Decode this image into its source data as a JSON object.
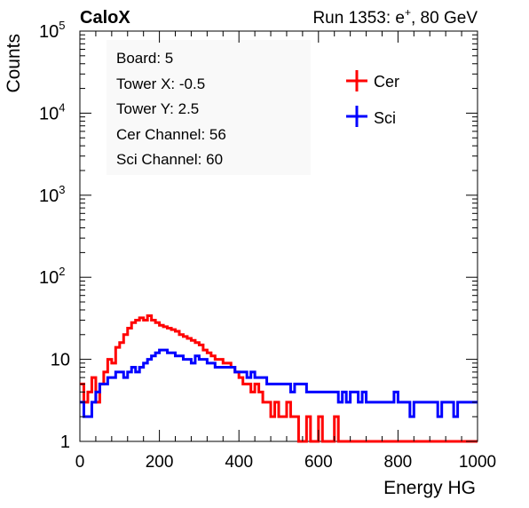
{
  "header": {
    "left_label": "CaloX",
    "right_label_prefix": "Run 1353: e",
    "right_label_sup": "+",
    "right_label_suffix": ", 80 GeV"
  },
  "info_box": {
    "lines": [
      "Board: 5",
      "Tower X: -0.5",
      "Tower Y: 2.5",
      "Cer Channel: 56",
      "Sci Channel: 60"
    ]
  },
  "colors": {
    "cer": "#ff0000",
    "sci": "#0000ff",
    "axis": "#000000"
  },
  "chart_data": {
    "type": "line",
    "xlabel": "Energy HG",
    "ylabel": "Counts",
    "xlim": [
      0,
      1000
    ],
    "ylim": [
      1,
      100000
    ],
    "yscale": "log",
    "x_ticks": [
      0,
      200,
      400,
      600,
      800,
      1000
    ],
    "y_ticks": [
      {
        "value": 1,
        "base": "1",
        "exp": ""
      },
      {
        "value": 10,
        "base": "10",
        "exp": ""
      },
      {
        "value": 100,
        "base": "10",
        "exp": "2"
      },
      {
        "value": 1000,
        "base": "10",
        "exp": "3"
      },
      {
        "value": 10000,
        "base": "10",
        "exp": "4"
      },
      {
        "value": 100000,
        "base": "10",
        "exp": "5"
      }
    ],
    "legend": {
      "placement": "top-right"
    },
    "series": [
      {
        "name": "Cer",
        "bin_width": 10,
        "x": [
          0,
          10,
          20,
          30,
          40,
          50,
          60,
          70,
          80,
          90,
          100,
          110,
          120,
          130,
          140,
          150,
          160,
          170,
          180,
          190,
          200,
          210,
          220,
          230,
          240,
          250,
          260,
          270,
          280,
          290,
          300,
          310,
          320,
          330,
          340,
          350,
          360,
          370,
          380,
          390,
          400,
          410,
          420,
          430,
          440,
          450,
          460,
          470,
          480,
          490,
          500,
          510,
          520,
          530,
          540,
          550,
          560,
          570,
          580,
          590,
          600,
          610,
          620,
          630,
          640,
          650,
          660,
          670,
          680,
          690,
          700,
          710,
          720,
          730,
          740,
          750,
          760,
          770,
          780,
          790,
          800,
          810,
          820,
          830,
          840,
          850,
          860,
          870,
          880,
          890,
          900,
          910,
          920,
          930,
          940,
          950,
          960,
          970,
          980,
          990
        ],
        "values": [
          5,
          3,
          4,
          6,
          3,
          5,
          7,
          10,
          9,
          14,
          16,
          20,
          24,
          28,
          30,
          32,
          30,
          34,
          30,
          28,
          26,
          25,
          24,
          23,
          22,
          20,
          19,
          18,
          17,
          16,
          15,
          13,
          12,
          11,
          10,
          10,
          9,
          9,
          8,
          7,
          6,
          5,
          5,
          4,
          5,
          4,
          3,
          3,
          2,
          3,
          2,
          2,
          3,
          2,
          2,
          1,
          1,
          2,
          1,
          1,
          2,
          1,
          1,
          1,
          2,
          1,
          1,
          1,
          1,
          1,
          1,
          1,
          1,
          1,
          1,
          1,
          1,
          1,
          1,
          1,
          1,
          1,
          1,
          1,
          1,
          1,
          1,
          1,
          1,
          1,
          1,
          1,
          1,
          1,
          1,
          1,
          1,
          1,
          1,
          1
        ]
      },
      {
        "name": "Sci",
        "bin_width": 10,
        "x": [
          0,
          10,
          20,
          30,
          40,
          50,
          60,
          70,
          80,
          90,
          100,
          110,
          120,
          130,
          140,
          150,
          160,
          170,
          180,
          190,
          200,
          210,
          220,
          230,
          240,
          250,
          260,
          270,
          280,
          290,
          300,
          310,
          320,
          330,
          340,
          350,
          360,
          370,
          380,
          390,
          400,
          410,
          420,
          430,
          440,
          450,
          460,
          470,
          480,
          490,
          500,
          510,
          520,
          530,
          540,
          550,
          560,
          570,
          580,
          590,
          600,
          610,
          620,
          630,
          640,
          650,
          660,
          670,
          680,
          690,
          700,
          710,
          720,
          730,
          740,
          750,
          760,
          770,
          780,
          790,
          800,
          810,
          820,
          830,
          840,
          850,
          860,
          870,
          880,
          890,
          900,
          910,
          920,
          930,
          940,
          950,
          960,
          970,
          980,
          990
        ],
        "values": [
          3,
          2,
          2,
          3,
          4,
          5,
          5,
          6,
          6,
          7,
          7,
          6,
          7,
          8,
          7,
          8,
          9,
          10,
          11,
          12,
          13,
          13,
          12,
          12,
          11,
          11,
          10,
          10,
          9,
          11,
          10,
          10,
          9,
          9,
          8,
          8,
          8,
          8,
          8,
          7,
          7,
          7,
          6,
          7,
          6,
          6,
          6,
          5,
          5,
          5,
          5,
          5,
          5,
          4,
          5,
          5,
          5,
          4,
          4,
          4,
          4,
          4,
          4,
          4,
          4,
          3,
          4,
          3,
          4,
          4,
          3,
          4,
          3,
          3,
          3,
          3,
          3,
          3,
          3,
          4,
          3,
          3,
          3,
          2,
          3,
          3,
          3,
          3,
          3,
          3,
          2,
          3,
          3,
          3,
          2,
          3,
          3,
          3,
          3,
          3
        ]
      }
    ]
  }
}
